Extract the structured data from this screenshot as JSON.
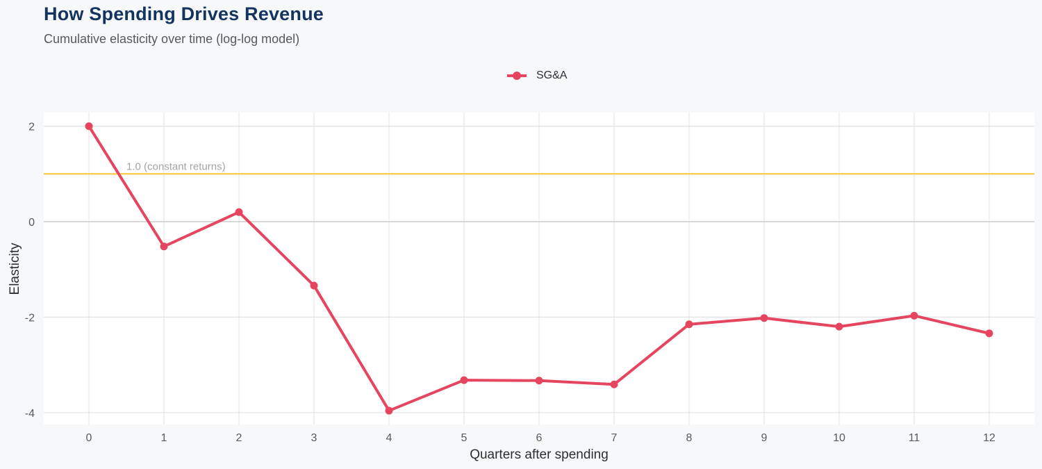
{
  "header": {
    "title": "How Spending Drives Revenue",
    "subtitle": "Cumulative elasticity over time (log-log model)"
  },
  "legend": {
    "items": [
      {
        "label": "SG&A",
        "color": "#e5455f"
      }
    ]
  },
  "axes": {
    "xlabel": "Quarters after spending",
    "ylabel": "Elasticity",
    "xticks": [
      "0",
      "1",
      "2",
      "3",
      "4",
      "5",
      "6",
      "7",
      "8",
      "9",
      "10",
      "11",
      "12"
    ],
    "yticks": [
      "2",
      "0",
      "-2",
      "-4"
    ]
  },
  "reference_line": {
    "value": 1.0,
    "label": "1.0 (constant returns)",
    "color": "#f6cf5a"
  },
  "chart_data": {
    "type": "line",
    "title": "How Spending Drives Revenue",
    "subtitle": "Cumulative elasticity over time (log-log model)",
    "xlabel": "Quarters after spending",
    "ylabel": "Elasticity",
    "x": [
      0,
      1,
      2,
      3,
      4,
      5,
      6,
      7,
      8,
      9,
      10,
      11,
      12
    ],
    "series": [
      {
        "name": "SG&A",
        "color": "#e5455f",
        "values": [
          2.0,
          -0.52,
          0.2,
          -1.34,
          -3.96,
          -3.32,
          -3.33,
          -3.41,
          -2.15,
          -2.02,
          -2.2,
          -1.97,
          -2.34
        ]
      }
    ],
    "xlim": [
      -0.6,
      12.6
    ],
    "ylim": [
      -4.3,
      2.3
    ],
    "yticks": [
      2,
      0,
      -2,
      -4
    ],
    "reference_lines": [
      {
        "y": 1.0,
        "label": "1.0 (constant returns)",
        "color": "#f6cf5a"
      },
      {
        "y": 0,
        "color": "#cccccc"
      }
    ],
    "grid": true,
    "legend_position": "top"
  }
}
